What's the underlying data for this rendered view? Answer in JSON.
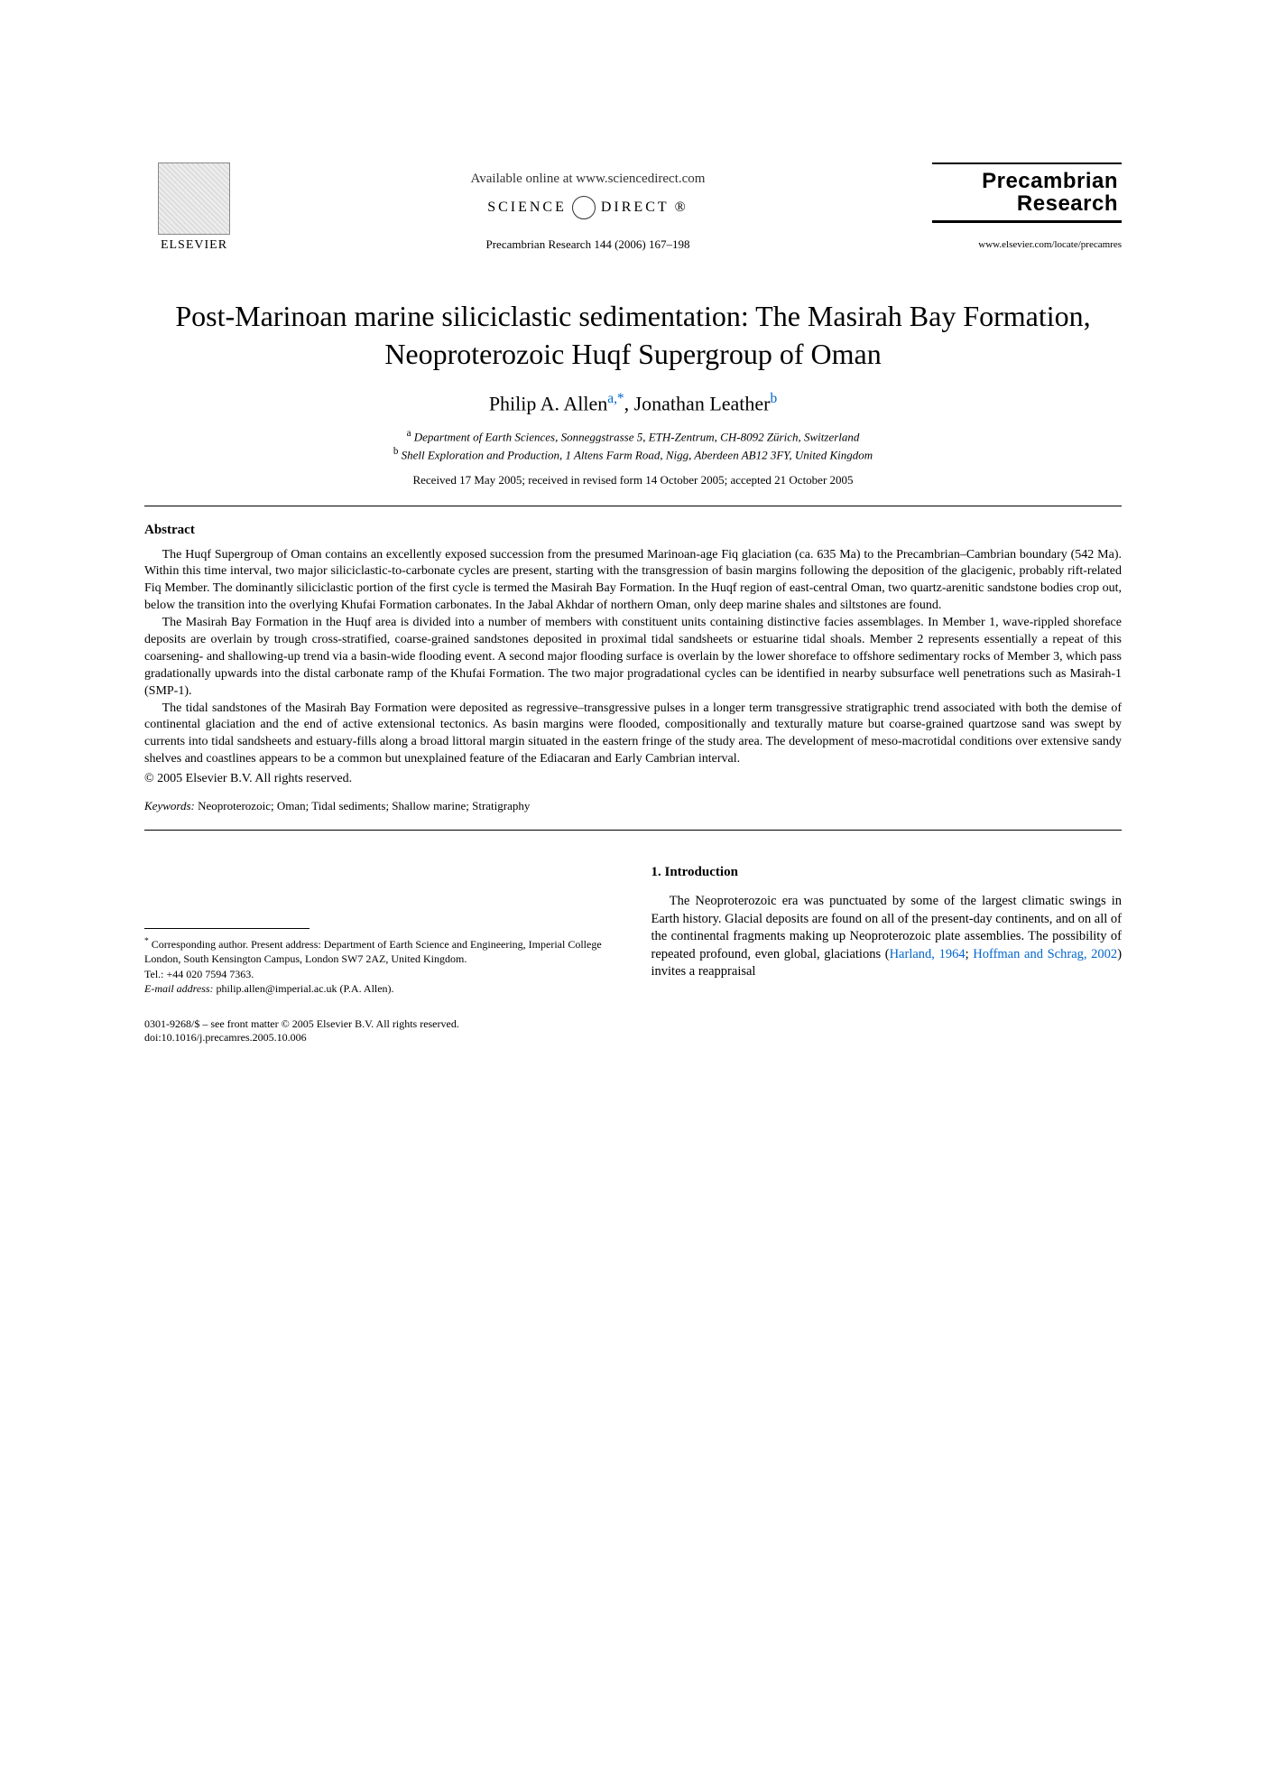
{
  "header": {
    "publisher": "ELSEVIER",
    "available_text": "Available online at www.sciencedirect.com",
    "sciencedirect_label": "SCIENCE",
    "sciencedirect_label2": "DIRECT",
    "citation": "Precambrian Research 144 (2006) 167–198",
    "journal_name_line1": "Precambrian",
    "journal_name_line2": "Research",
    "journal_url": "www.elsevier.com/locate/precamres"
  },
  "title": "Post-Marinoan marine siliciclastic sedimentation: The Masirah Bay Formation, Neoproterozoic Huqf Supergroup of Oman",
  "authors": {
    "a1_name": "Philip A. Allen",
    "a1_marks": "a,*",
    "a2_name": "Jonathan Leather",
    "a2_marks": "b"
  },
  "affiliations": {
    "a": "Department of Earth Sciences, Sonneggstrasse 5, ETH-Zentrum, CH-8092 Zürich, Switzerland",
    "b": "Shell Exploration and Production, 1 Altens Farm Road, Nigg, Aberdeen AB12 3FY, United Kingdom"
  },
  "dates": "Received 17 May 2005; received in revised form 14 October 2005; accepted 21 October 2005",
  "abstract": {
    "heading": "Abstract",
    "p1": "The Huqf Supergroup of Oman contains an excellently exposed succession from the presumed Marinoan-age Fiq glaciation (ca. 635 Ma) to the Precambrian–Cambrian boundary (542 Ma). Within this time interval, two major siliciclastic-to-carbonate cycles are present, starting with the transgression of basin margins following the deposition of the glacigenic, probably rift-related Fiq Member. The dominantly siliciclastic portion of the first cycle is termed the Masirah Bay Formation. In the Huqf region of east-central Oman, two quartz-arenitic sandstone bodies crop out, below the transition into the overlying Khufai Formation carbonates. In the Jabal Akhdar of northern Oman, only deep marine shales and siltstones are found.",
    "p2": "The Masirah Bay Formation in the Huqf area is divided into a number of members with constituent units containing distinctive facies assemblages. In Member 1, wave-rippled shoreface deposits are overlain by trough cross-stratified, coarse-grained sandstones deposited in proximal tidal sandsheets or estuarine tidal shoals. Member 2 represents essentially a repeat of this coarsening- and shallowing-up trend via a basin-wide flooding event. A second major flooding surface is overlain by the lower shoreface to offshore sedimentary rocks of Member 3, which pass gradationally upwards into the distal carbonate ramp of the Khufai Formation. The two major progradational cycles can be identified in nearby subsurface well penetrations such as Masirah-1 (SMP-1).",
    "p3": "The tidal sandstones of the Masirah Bay Formation were deposited as regressive–transgressive pulses in a longer term transgressive stratigraphic trend associated with both the demise of continental glaciation and the end of active extensional tectonics. As basin margins were flooded, compositionally and texturally mature but coarse-grained quartzose sand was swept by currents into tidal sandsheets and estuary-fills along a broad littoral margin situated in the eastern fringe of the study area. The development of meso-macrotidal conditions over extensive sandy shelves and coastlines appears to be a common but unexplained feature of the Ediacaran and Early Cambrian interval.",
    "copyright": "© 2005 Elsevier B.V. All rights reserved."
  },
  "keywords": {
    "label": "Keywords:",
    "text": "Neoproterozoic; Oman; Tidal sediments; Shallow marine; Stratigraphy"
  },
  "section1": {
    "heading": "1. Introduction",
    "body_pre": "The Neoproterozoic era was punctuated by some of the largest climatic swings in Earth history. Glacial deposits are found on all of the present-day continents, and on all of the continental fragments making up Neoproterozoic plate assemblies. The possibility of repeated profound, even global, glaciations (",
    "cite1": "Harland, 1964",
    "sep": "; ",
    "cite2": "Hoffman and Schrag, 2002",
    "body_post": ") invites a reappraisal"
  },
  "footnote": {
    "corr_label": "*",
    "corr_text": "Corresponding author. Present address: Department of Earth Science and Engineering, Imperial College London, South Kensington Campus, London SW7 2AZ, United Kingdom.",
    "tel_label": "Tel.: ",
    "tel": "+44 020 7594 7363.",
    "email_label": "E-mail address:",
    "email": "philip.allen@imperial.ac.uk (P.A. Allen)."
  },
  "footer": {
    "line1": "0301-9268/$ – see front matter © 2005 Elsevier B.V. All rights reserved.",
    "line2": "doi:10.1016/j.precamres.2005.10.006"
  }
}
